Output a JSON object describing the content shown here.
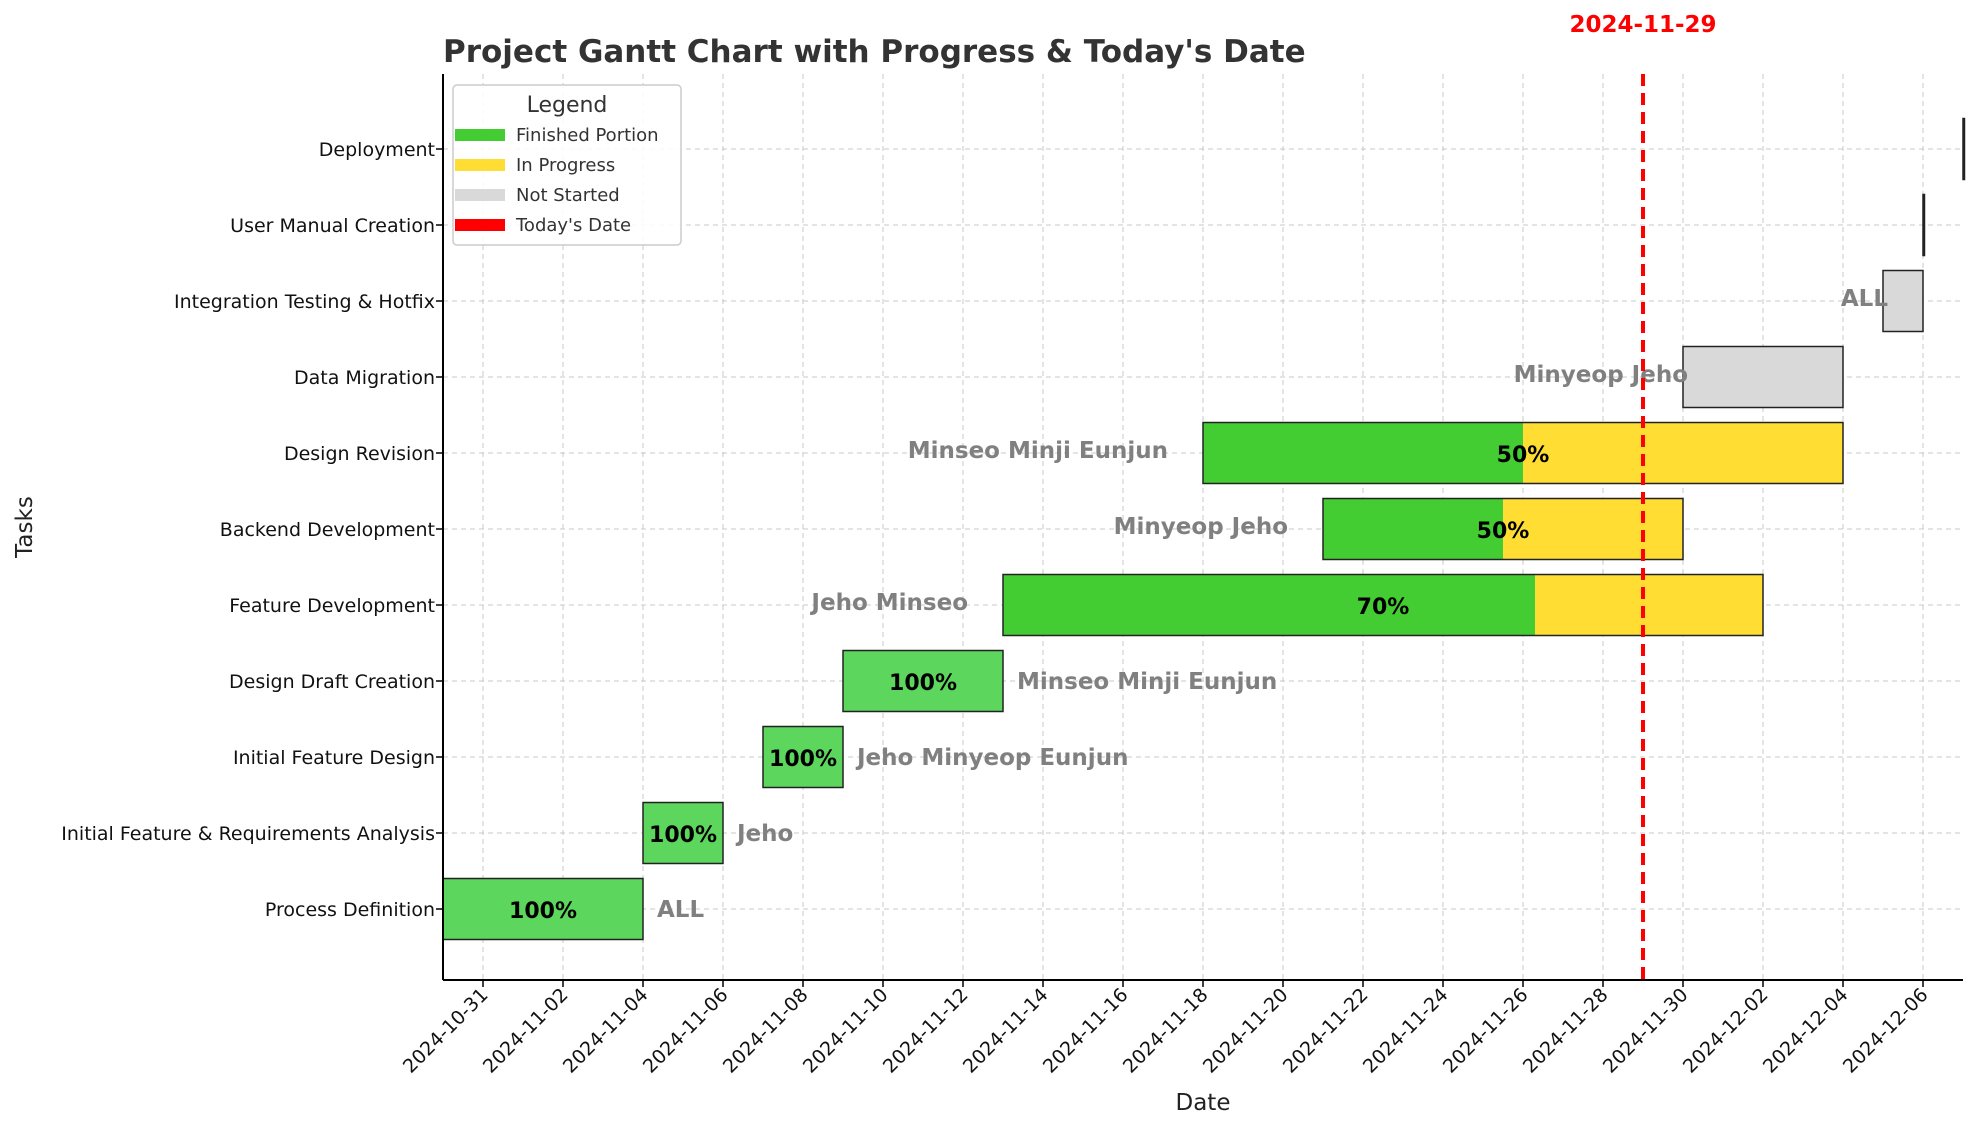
{
  "chart_data": {
    "type": "gantt",
    "title": "Project Gantt Chart with Progress & Today's Date",
    "xlabel": "Date",
    "ylabel": "Tasks",
    "today": "2024-11-29",
    "today_label": "2024-11-29",
    "xlim": [
      "2024-10-30",
      "2024-12-07"
    ],
    "x_ticks": [
      "2024-10-31",
      "2024-11-02",
      "2024-11-04",
      "2024-11-06",
      "2024-11-08",
      "2024-11-10",
      "2024-11-12",
      "2024-11-14",
      "2024-11-16",
      "2024-11-18",
      "2024-11-20",
      "2024-11-22",
      "2024-11-24",
      "2024-11-26",
      "2024-11-28",
      "2024-11-30",
      "2024-12-02",
      "2024-12-04",
      "2024-12-06"
    ],
    "grid": true,
    "legend": {
      "title": "Legend",
      "position": "top-left",
      "items": [
        {
          "label": "Finished Portion",
          "color": "#44cc33"
        },
        {
          "label": "In Progress",
          "color": "#ffdd33"
        },
        {
          "label": "Not Started",
          "color": "#d9d9d9"
        },
        {
          "label": "Today's Date",
          "color": "#ff0000"
        }
      ]
    },
    "colors": {
      "finished": "#44cc33",
      "complete": "#5cd65c",
      "in_progress": "#ffdd33",
      "not_started": "#d9d9d9",
      "today": "#ff0000"
    },
    "tasks": [
      {
        "name": "Process Definition",
        "start": "2024-10-30",
        "end": "2024-11-04",
        "progress": 100,
        "progress_label": "100%",
        "assignees": "ALL"
      },
      {
        "name": "Initial Feature & Requirements Analysis",
        "start": "2024-11-04",
        "end": "2024-11-06",
        "progress": 100,
        "progress_label": "100%",
        "assignees": "Jeho"
      },
      {
        "name": "Initial Feature Design",
        "start": "2024-11-07",
        "end": "2024-11-09",
        "progress": 100,
        "progress_label": "100%",
        "assignees": "Jeho Minyeop Eunjun"
      },
      {
        "name": "Design Draft Creation",
        "start": "2024-11-09",
        "end": "2024-11-13",
        "progress": 100,
        "progress_label": "100%",
        "assignees": "Minseo Minji Eunjun"
      },
      {
        "name": "Feature Development",
        "start": "2024-11-13",
        "end": "2024-12-02",
        "progress": 70,
        "progress_label": "70%",
        "assignees": "Jeho Minseo"
      },
      {
        "name": "Backend Development",
        "start": "2024-11-21",
        "end": "2024-11-30",
        "progress": 50,
        "progress_label": "50%",
        "assignees": "Minyeop Jeho"
      },
      {
        "name": "Design Revision",
        "start": "2024-11-18",
        "end": "2024-12-04",
        "progress": 50,
        "progress_label": "50%",
        "assignees": "Minseo Minji Eunjun"
      },
      {
        "name": "Data Migration",
        "start": "2024-11-30",
        "end": "2024-12-04",
        "progress": 0,
        "progress_label": "",
        "assignees": "Minyeop Jeho"
      },
      {
        "name": "Integration Testing & Hotfix",
        "start": "2024-12-05",
        "end": "2024-12-06",
        "progress": 0,
        "progress_label": "",
        "assignees": "ALL"
      },
      {
        "name": "User Manual Creation",
        "start": "2024-12-06",
        "end": "2024-12-06",
        "progress": 0,
        "progress_label": "",
        "assignees": ""
      },
      {
        "name": "Deployment",
        "start": "2024-12-07",
        "end": "2024-12-07",
        "progress": 0,
        "progress_label": "",
        "assignees": ""
      }
    ]
  }
}
